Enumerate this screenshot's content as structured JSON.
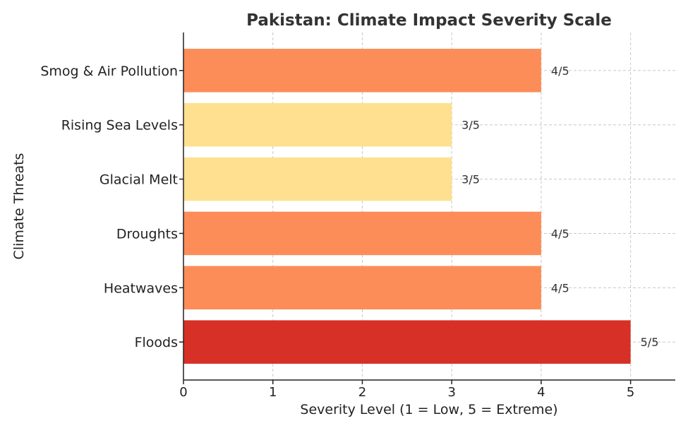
{
  "chart_data": {
    "type": "bar",
    "orientation": "horizontal",
    "title": "Pakistan: Climate Impact Severity Scale",
    "xlabel": "Severity Level (1 = Low, 5 = Extreme)",
    "ylabel": "Climate Threats",
    "xlim": [
      0,
      5.5
    ],
    "xticks": [
      "0",
      "1",
      "2",
      "3",
      "4",
      "5"
    ],
    "grid": true,
    "categories": [
      "Floods",
      "Heatwaves",
      "Droughts",
      "Glacial Melt",
      "Rising Sea Levels",
      "Smog & Air Pollution"
    ],
    "values": [
      5,
      4,
      4,
      3,
      3,
      4
    ],
    "data_labels": [
      "5/5",
      "4/5",
      "4/5",
      "3/5",
      "3/5",
      "4/5"
    ],
    "colors": [
      "#d73027",
      "#fc8d59",
      "#fc8d59",
      "#fee090",
      "#fee090",
      "#fc8d59"
    ]
  }
}
